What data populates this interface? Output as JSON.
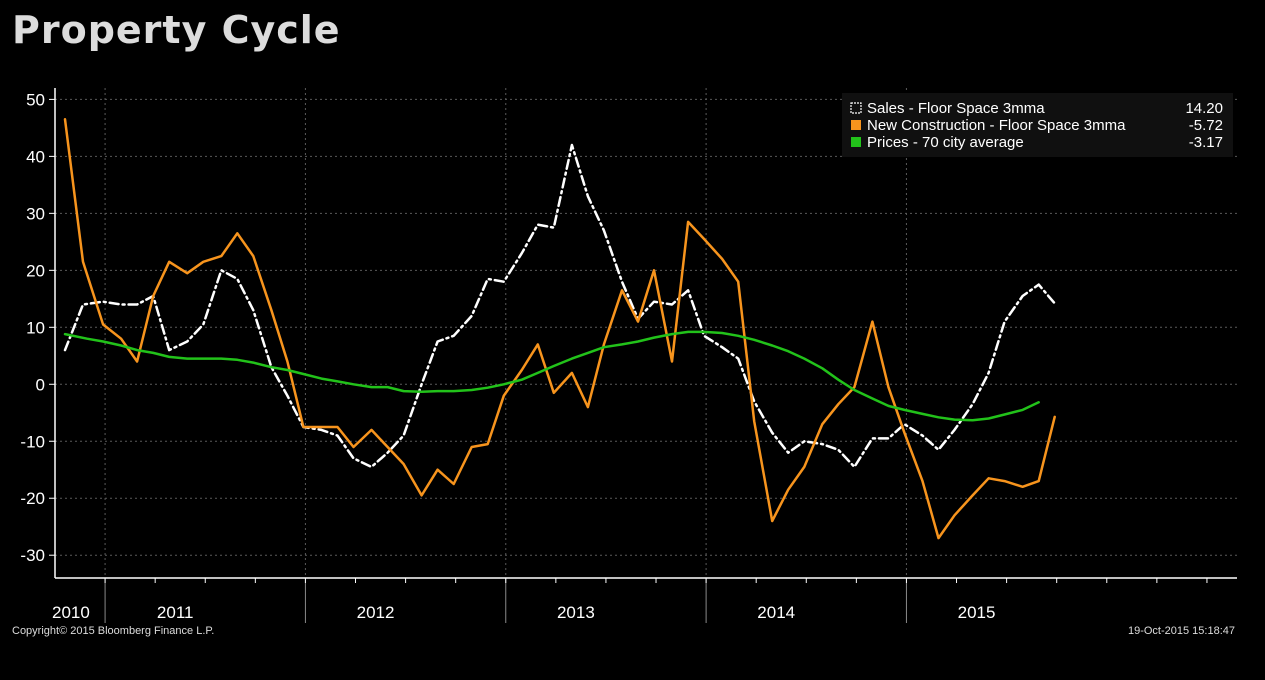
{
  "title": "Property Cycle",
  "footer": {
    "copyright": "Copyright© 2015 Bloomberg Finance L.P.",
    "timestamp": "19-Oct-2015 15:18:47"
  },
  "chart_data": {
    "type": "line",
    "ylim": [
      -34,
      52
    ],
    "yticks": [
      50,
      40,
      30,
      20,
      10,
      0,
      -10,
      -20,
      -30
    ],
    "xlim": [
      2010.0,
      2015.9
    ],
    "year_labels": [
      {
        "label": "2010",
        "center": 2010.02
      },
      {
        "label": "2011",
        "center": 2010.6
      },
      {
        "label": "2012",
        "center": 2011.6
      },
      {
        "label": "2013",
        "center": 2012.6
      },
      {
        "label": "2014",
        "center": 2013.6
      },
      {
        "label": "2015",
        "center": 2014.6
      }
    ],
    "year_boundaries": [
      2010.25,
      2011.25,
      2012.25,
      2013.25,
      2014.25
    ],
    "grid": true,
    "legend_position": "top-right",
    "series": [
      {
        "name": "Sales - Floor Space 3mma",
        "value_label": "14.20",
        "color": "#ffffff",
        "dash": true,
        "points": [
          [
            2010.05,
            6
          ],
          [
            2010.14,
            14
          ],
          [
            2010.24,
            14.5
          ],
          [
            2010.33,
            14
          ],
          [
            2010.41,
            14
          ],
          [
            2010.49,
            15.5
          ],
          [
            2010.57,
            6
          ],
          [
            2010.66,
            7.5
          ],
          [
            2010.74,
            10.5
          ],
          [
            2010.83,
            20
          ],
          [
            2010.91,
            18.5
          ],
          [
            2010.99,
            13
          ],
          [
            2011.08,
            3
          ],
          [
            2011.16,
            -2
          ],
          [
            2011.24,
            -7.5
          ],
          [
            2011.33,
            -8
          ],
          [
            2011.41,
            -9
          ],
          [
            2011.49,
            -13
          ],
          [
            2011.58,
            -14.5
          ],
          [
            2011.66,
            -12
          ],
          [
            2011.74,
            -9
          ],
          [
            2011.83,
            0
          ],
          [
            2011.91,
            7.5
          ],
          [
            2011.99,
            8.5
          ],
          [
            2012.08,
            12
          ],
          [
            2012.16,
            18.5
          ],
          [
            2012.24,
            18
          ],
          [
            2012.33,
            23
          ],
          [
            2012.41,
            28
          ],
          [
            2012.49,
            27.5
          ],
          [
            2012.58,
            42
          ],
          [
            2012.66,
            33
          ],
          [
            2012.74,
            27
          ],
          [
            2012.83,
            18
          ],
          [
            2012.91,
            11.5
          ],
          [
            2012.99,
            14.5
          ],
          [
            2013.08,
            14
          ],
          [
            2013.16,
            16.5
          ],
          [
            2013.24,
            8.5
          ],
          [
            2013.33,
            6.5
          ],
          [
            2013.41,
            4.5
          ],
          [
            2013.49,
            -3
          ],
          [
            2013.58,
            -8.5
          ],
          [
            2013.66,
            -12
          ],
          [
            2013.74,
            -10
          ],
          [
            2013.83,
            -10.5
          ],
          [
            2013.91,
            -11.5
          ],
          [
            2013.99,
            -14.5
          ],
          [
            2014.08,
            -9.5
          ],
          [
            2014.16,
            -9.5
          ],
          [
            2014.24,
            -7
          ],
          [
            2014.33,
            -9
          ],
          [
            2014.41,
            -11.5
          ],
          [
            2014.49,
            -8
          ],
          [
            2014.58,
            -3.5
          ],
          [
            2014.66,
            2
          ],
          [
            2014.74,
            11
          ],
          [
            2014.83,
            15.5
          ],
          [
            2014.91,
            17.5
          ],
          [
            2014.99,
            14.2
          ]
        ]
      },
      {
        "name": "New Construction - Floor Space 3mma",
        "value_label": "-5.72",
        "color": "#f7941d",
        "dash": false,
        "points": [
          [
            2010.05,
            46.5
          ],
          [
            2010.14,
            21.5
          ],
          [
            2010.24,
            10.5
          ],
          [
            2010.33,
            8
          ],
          [
            2010.41,
            4
          ],
          [
            2010.49,
            15.5
          ],
          [
            2010.57,
            21.5
          ],
          [
            2010.66,
            19.5
          ],
          [
            2010.74,
            21.5
          ],
          [
            2010.83,
            22.5
          ],
          [
            2010.91,
            26.5
          ],
          [
            2010.99,
            22.5
          ],
          [
            2011.08,
            13
          ],
          [
            2011.16,
            4
          ],
          [
            2011.24,
            -7.5
          ],
          [
            2011.33,
            -7.5
          ],
          [
            2011.41,
            -7.5
          ],
          [
            2011.49,
            -11
          ],
          [
            2011.58,
            -8
          ],
          [
            2011.66,
            -11
          ],
          [
            2011.74,
            -14
          ],
          [
            2011.83,
            -19.5
          ],
          [
            2011.91,
            -15
          ],
          [
            2011.99,
            -17.5
          ],
          [
            2012.08,
            -11
          ],
          [
            2012.16,
            -10.5
          ],
          [
            2012.24,
            -2
          ],
          [
            2012.33,
            2.5
          ],
          [
            2012.41,
            7
          ],
          [
            2012.49,
            -1.5
          ],
          [
            2012.58,
            2
          ],
          [
            2012.66,
            -4
          ],
          [
            2012.74,
            7
          ],
          [
            2012.83,
            16.5
          ],
          [
            2012.91,
            11
          ],
          [
            2012.99,
            20
          ],
          [
            2013.08,
            4
          ],
          [
            2013.16,
            28.5
          ],
          [
            2013.24,
            25.5
          ],
          [
            2013.33,
            22
          ],
          [
            2013.41,
            18
          ],
          [
            2013.49,
            -6.5
          ],
          [
            2013.58,
            -24
          ],
          [
            2013.66,
            -18.5
          ],
          [
            2013.74,
            -14.5
          ],
          [
            2013.83,
            -7
          ],
          [
            2013.91,
            -3.5
          ],
          [
            2013.99,
            -0.5
          ],
          [
            2014.08,
            11
          ],
          [
            2014.16,
            -0.5
          ],
          [
            2014.24,
            -8.5
          ],
          [
            2014.33,
            -17
          ],
          [
            2014.41,
            -27
          ],
          [
            2014.49,
            -23
          ],
          [
            2014.58,
            -19.5
          ],
          [
            2014.66,
            -16.5
          ],
          [
            2014.74,
            -17
          ],
          [
            2014.83,
            -18
          ],
          [
            2014.91,
            -17
          ],
          [
            2014.99,
            -5.72
          ]
        ]
      },
      {
        "name": "Prices - 70 city average",
        "value_label": "-3.17",
        "color": "#22c21a",
        "dash": false,
        "points": [
          [
            2010.05,
            8.8
          ],
          [
            2010.16,
            8
          ],
          [
            2010.24,
            7.5
          ],
          [
            2010.33,
            6.8
          ],
          [
            2010.41,
            6
          ],
          [
            2010.49,
            5.5
          ],
          [
            2010.57,
            4.8
          ],
          [
            2010.66,
            4.5
          ],
          [
            2010.74,
            4.5
          ],
          [
            2010.83,
            4.5
          ],
          [
            2010.91,
            4.3
          ],
          [
            2010.99,
            3.8
          ],
          [
            2011.08,
            3
          ],
          [
            2011.16,
            2.5
          ],
          [
            2011.24,
            1.8
          ],
          [
            2011.33,
            1
          ],
          [
            2011.41,
            0.5
          ],
          [
            2011.49,
            0
          ],
          [
            2011.58,
            -0.5
          ],
          [
            2011.66,
            -0.5
          ],
          [
            2011.74,
            -1.2
          ],
          [
            2011.83,
            -1.3
          ],
          [
            2011.91,
            -1.2
          ],
          [
            2011.99,
            -1.2
          ],
          [
            2012.08,
            -1
          ],
          [
            2012.16,
            -0.6
          ],
          [
            2012.24,
            0
          ],
          [
            2012.33,
            0.8
          ],
          [
            2012.41,
            2
          ],
          [
            2012.49,
            3.2
          ],
          [
            2012.58,
            4.5
          ],
          [
            2012.66,
            5.5
          ],
          [
            2012.74,
            6.5
          ],
          [
            2012.83,
            7
          ],
          [
            2012.91,
            7.5
          ],
          [
            2012.99,
            8.2
          ],
          [
            2013.08,
            8.8
          ],
          [
            2013.16,
            9.2
          ],
          [
            2013.24,
            9.2
          ],
          [
            2013.33,
            9
          ],
          [
            2013.41,
            8.5
          ],
          [
            2013.49,
            7.8
          ],
          [
            2013.58,
            6.8
          ],
          [
            2013.66,
            5.8
          ],
          [
            2013.74,
            4.5
          ],
          [
            2013.83,
            2.8
          ],
          [
            2013.91,
            0.8
          ],
          [
            2013.99,
            -1
          ],
          [
            2014.08,
            -2.5
          ],
          [
            2014.16,
            -3.8
          ],
          [
            2014.24,
            -4.5
          ],
          [
            2014.33,
            -5.2
          ],
          [
            2014.41,
            -5.8
          ],
          [
            2014.49,
            -6.2
          ],
          [
            2014.58,
            -6.3
          ],
          [
            2014.66,
            -6
          ],
          [
            2014.74,
            -5.3
          ],
          [
            2014.83,
            -4.5
          ],
          [
            2014.91,
            -3.17
          ]
        ]
      }
    ]
  }
}
